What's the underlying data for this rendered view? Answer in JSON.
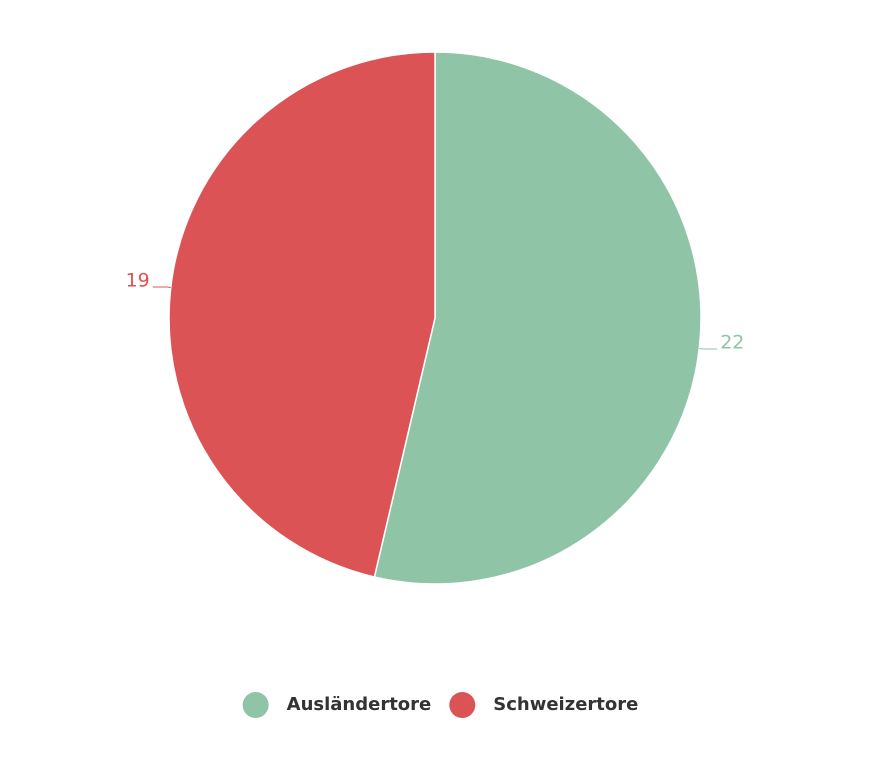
{
  "chart_data": {
    "type": "pie",
    "categories": [
      "Ausländertore",
      "Schweizertore"
    ],
    "values": [
      22,
      19
    ],
    "colors": [
      "#8fc4a6",
      "#dc5356"
    ]
  }
}
